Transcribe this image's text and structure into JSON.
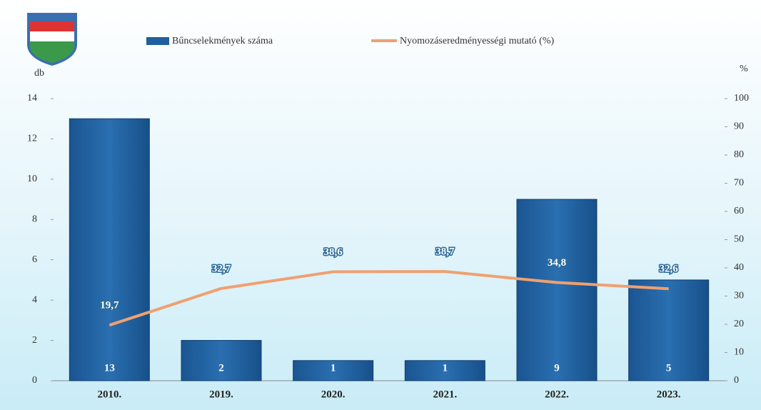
{
  "chart_data": {
    "type": "bar",
    "categories": [
      "2010.",
      "2019.",
      "2020.",
      "2021.",
      "2022.",
      "2023."
    ],
    "series": [
      {
        "name": "Bűncselekmények száma",
        "type": "bar",
        "color": "#1f5f9e",
        "values": [
          13,
          2,
          1,
          1,
          9,
          5
        ]
      },
      {
        "name": "Nyomozáseredményességi mutató (%)",
        "type": "line",
        "axis": "y2",
        "color": "#f0a070",
        "values": [
          19.7,
          32.7,
          38.6,
          38.7,
          34.8,
          32.6
        ],
        "value_labels": [
          "19,7",
          "32,7",
          "38,6",
          "38,7",
          "34,8",
          "32,6"
        ]
      }
    ],
    "ylabel": "db",
    "y2label": "%",
    "ylim": [
      0,
      14
    ],
    "yticks": [
      0,
      2,
      4,
      6,
      8,
      10,
      12,
      14
    ],
    "y2lim": [
      0,
      100
    ],
    "y2ticks": [
      0,
      10,
      20,
      30,
      40,
      50,
      60,
      70,
      80,
      90,
      100
    ],
    "legend": "top"
  }
}
